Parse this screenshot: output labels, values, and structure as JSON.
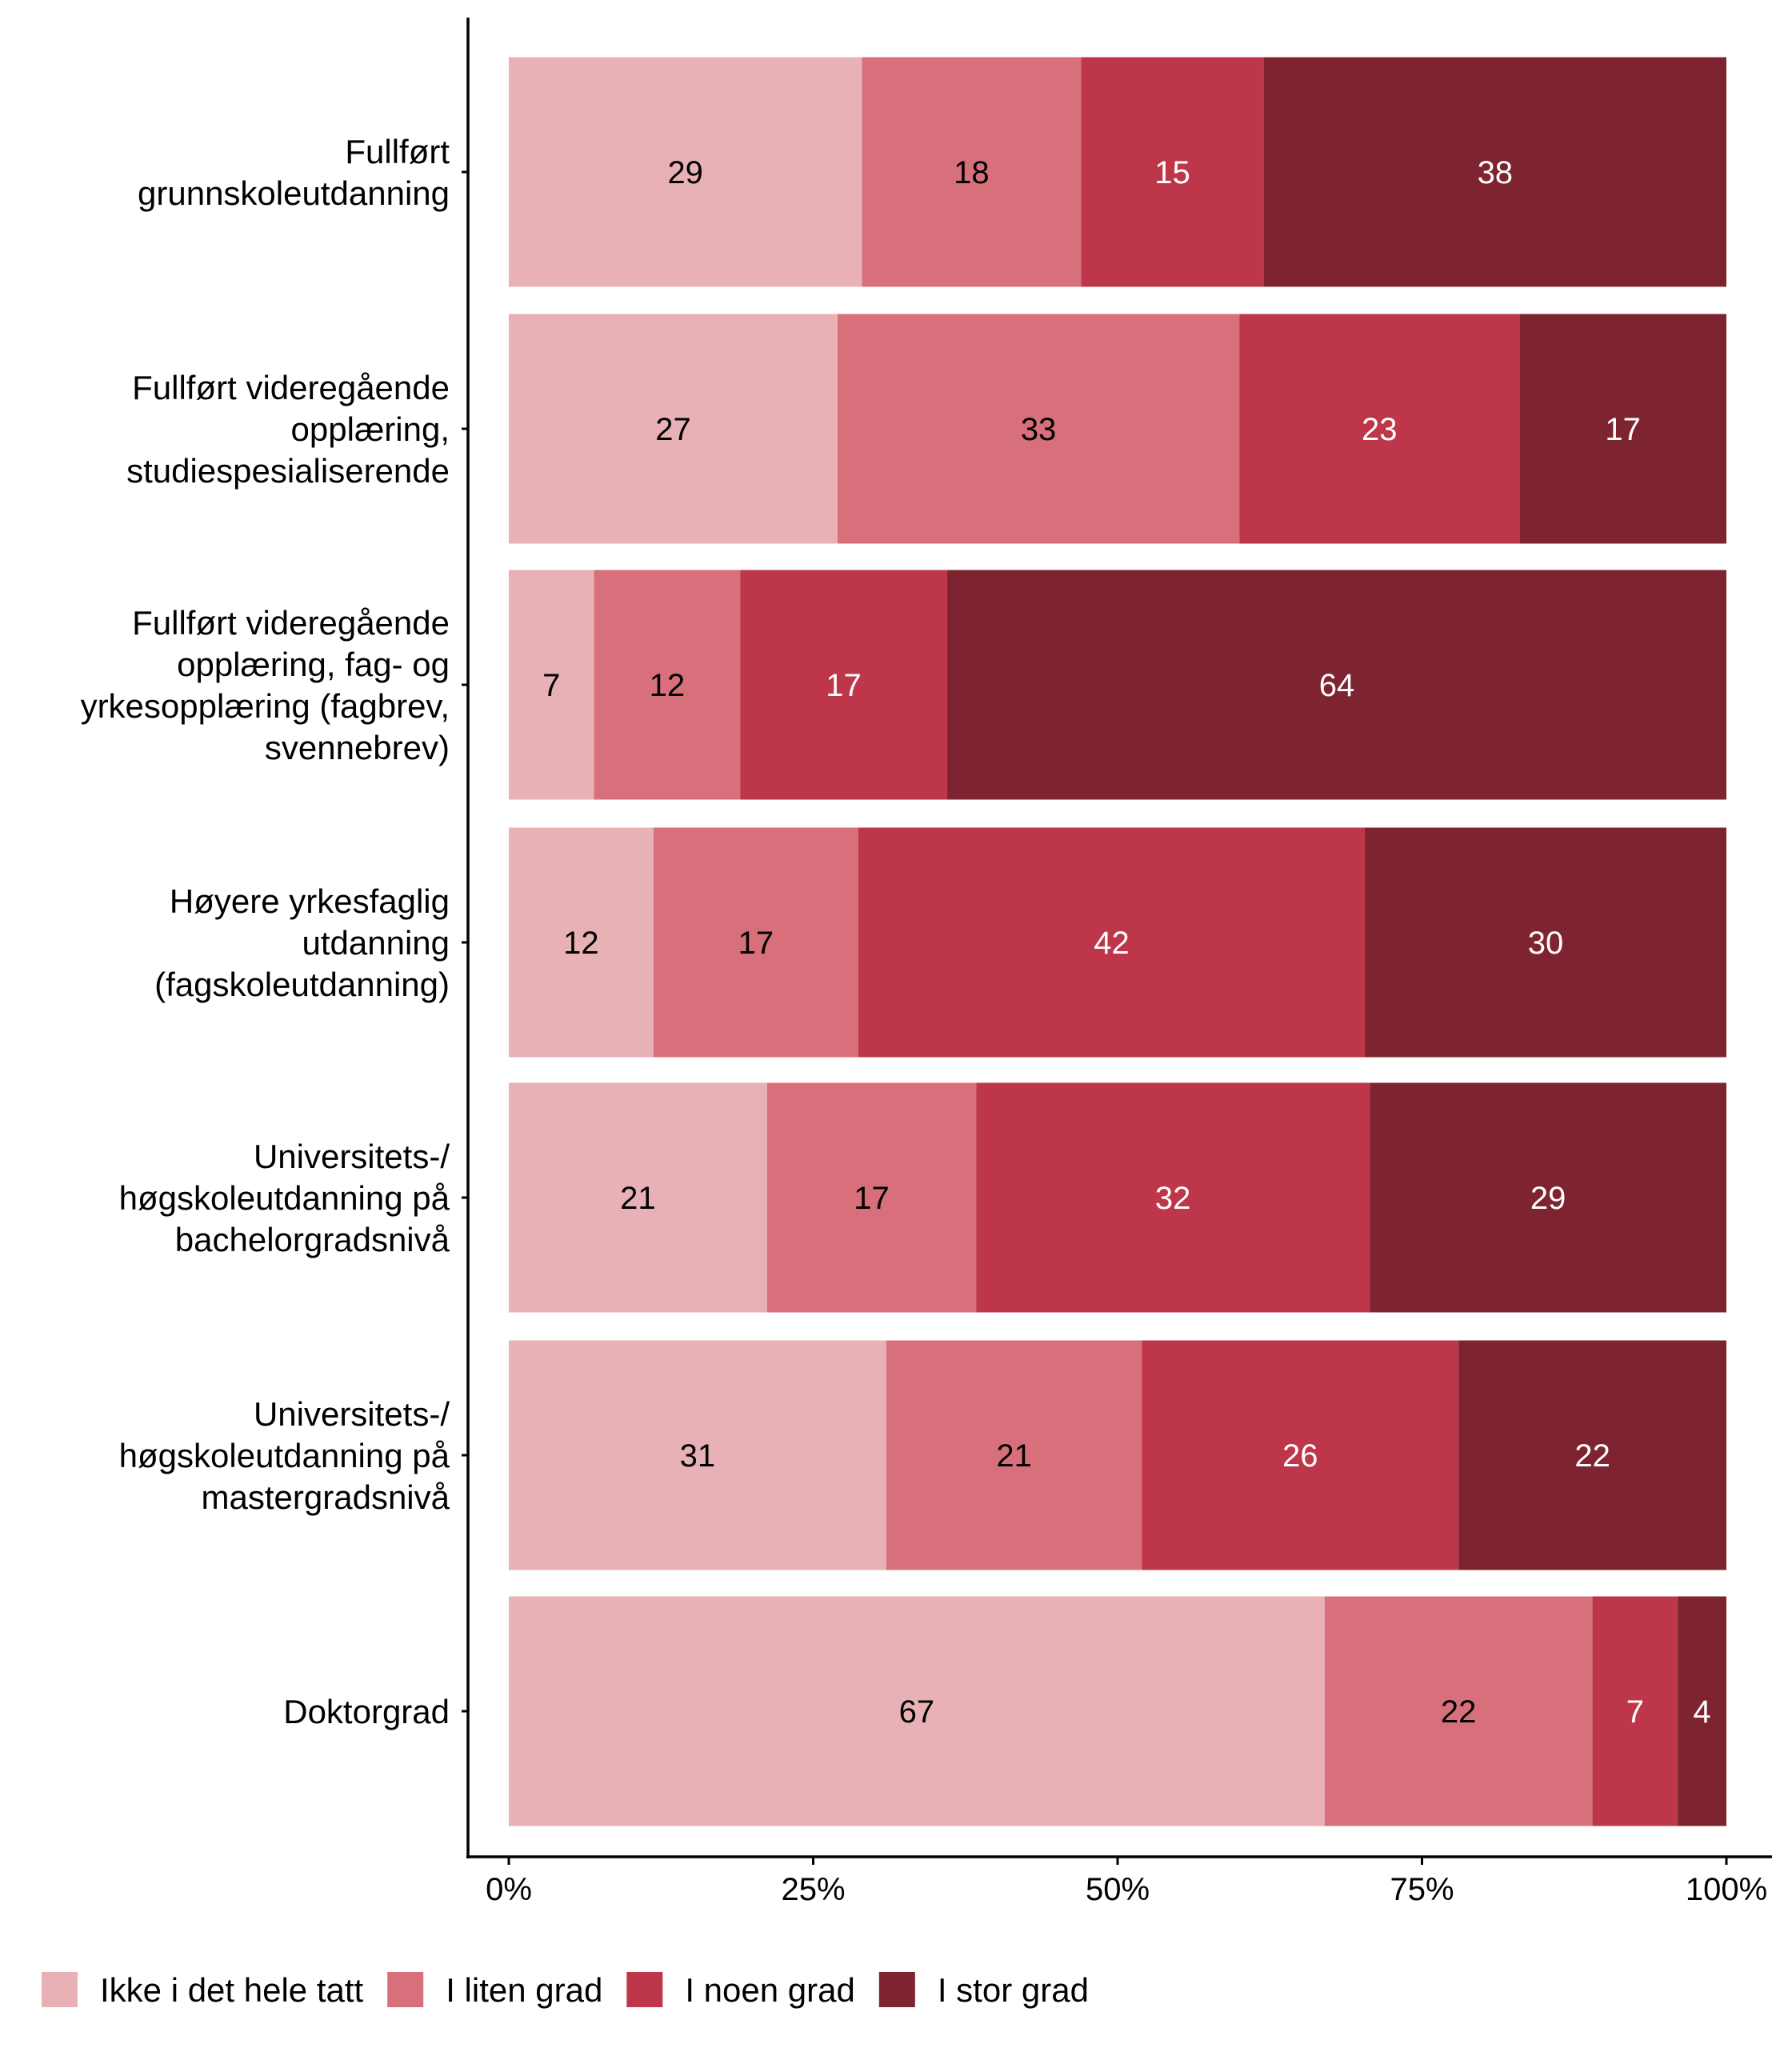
{
  "chart_data": {
    "type": "bar",
    "orientation": "horizontal",
    "stacked": "percent",
    "categories": [
      [
        "Fullført",
        "grunnskoleutdanning"
      ],
      [
        "Fullført videregående",
        "opplæring,",
        "studiespesialiserende"
      ],
      [
        "Fullført videregående",
        "opplæring, fag- og",
        "yrkesopplæring (fagbrev,",
        "svennebrev)"
      ],
      [
        "Høyere yrkesfaglig",
        "utdanning",
        "(fagskoleutdanning)"
      ],
      [
        "Universitets-/",
        "høgskoleutdanning på",
        "bachelorgradsnivå"
      ],
      [
        "Universitets-/",
        "høgskoleutdanning på",
        "mastergradsnivå"
      ],
      [
        "Doktorgrad"
      ]
    ],
    "series": [
      {
        "name": "Ikke i det hele tatt",
        "color": "#E8B1B6",
        "label_color": "#000000",
        "values": [
          29,
          27,
          7,
          12,
          21,
          31,
          67
        ]
      },
      {
        "name": "I liten grad",
        "color": "#D7707B",
        "label_color": "#000000",
        "values": [
          18,
          33,
          12,
          17,
          17,
          21,
          22
        ]
      },
      {
        "name": "I noen grad",
        "color": "#BE3649",
        "label_color": "#FFFFFF",
        "values": [
          15,
          23,
          17,
          42,
          32,
          26,
          7
        ]
      },
      {
        "name": "I stor grad",
        "color": "#7E2430",
        "label_color": "#FFFFFF",
        "values": [
          38,
          17,
          64,
          30,
          29,
          22,
          4
        ]
      }
    ],
    "xticks": [
      "0%",
      "25%",
      "50%",
      "75%",
      "100%"
    ],
    "xlim": [
      0,
      100
    ],
    "title": "",
    "xlabel": "",
    "ylabel": "",
    "grid": false,
    "legend_position": "bottom"
  }
}
